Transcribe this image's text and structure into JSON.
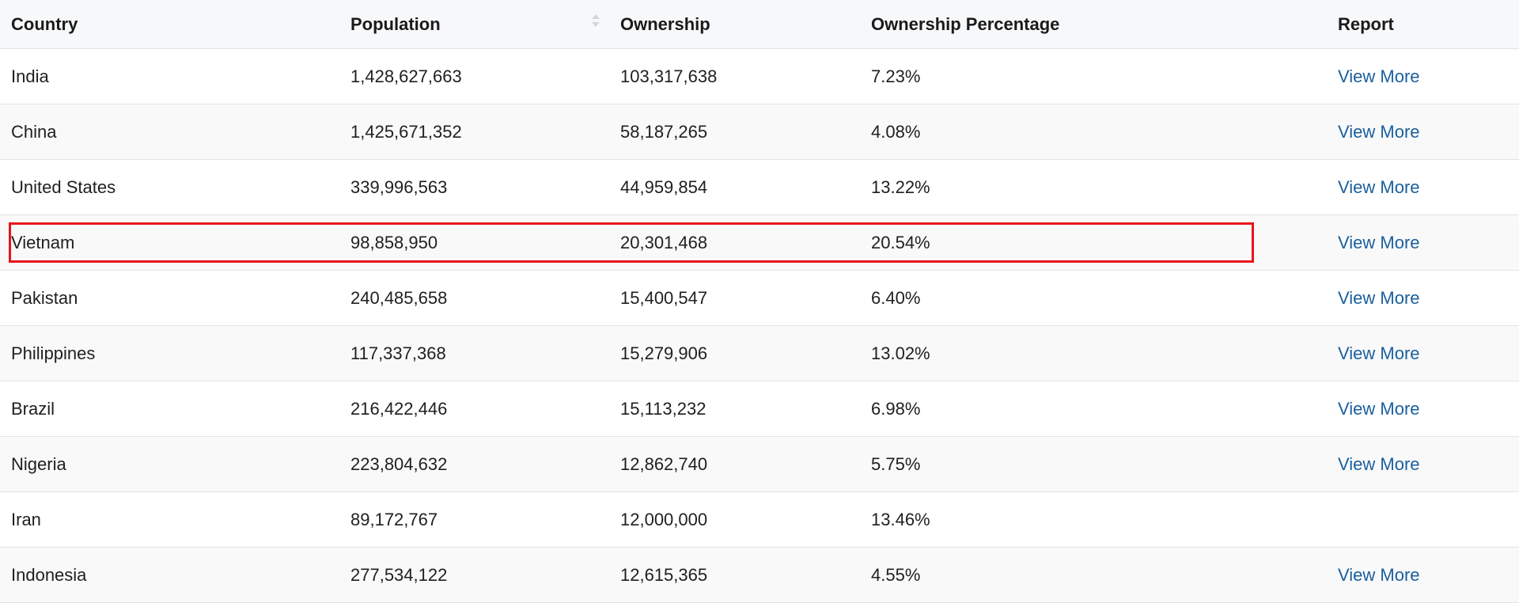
{
  "table": {
    "headers": {
      "country": "Country",
      "population": "Population",
      "ownership": "Ownership",
      "ownership_percentage": "Ownership Percentage",
      "report": "Report"
    },
    "rows": [
      {
        "country": "India",
        "population": "1,428,627,663",
        "ownership": "103,317,638",
        "percentage": "7.23%",
        "report": "View More"
      },
      {
        "country": "China",
        "population": "1,425,671,352",
        "ownership": "58,187,265",
        "percentage": "4.08%",
        "report": "View More"
      },
      {
        "country": "United States",
        "population": "339,996,563",
        "ownership": "44,959,854",
        "percentage": "13.22%",
        "report": "View More"
      },
      {
        "country": "Vietnam",
        "population": "98,858,950",
        "ownership": "20,301,468",
        "percentage": "20.54%",
        "report": "View More"
      },
      {
        "country": "Pakistan",
        "population": "240,485,658",
        "ownership": "15,400,547",
        "percentage": "6.40%",
        "report": "View More"
      },
      {
        "country": "Philippines",
        "population": "117,337,368",
        "ownership": "15,279,906",
        "percentage": "13.02%",
        "report": "View More"
      },
      {
        "country": "Brazil",
        "population": "216,422,446",
        "ownership": "15,113,232",
        "percentage": "6.98%",
        "report": "View More"
      },
      {
        "country": "Nigeria",
        "population": "223,804,632",
        "ownership": "12,862,740",
        "percentage": "5.75%",
        "report": "View More"
      },
      {
        "country": "Iran",
        "population": "89,172,767",
        "ownership": "12,000,000",
        "percentage": "13.46%",
        "report": ""
      },
      {
        "country": "Indonesia",
        "population": "277,534,122",
        "ownership": "12,615,365",
        "percentage": "4.55%",
        "report": "View More"
      }
    ]
  },
  "icons": {
    "population_sort": "sort-updown-icon"
  },
  "colors": {
    "link": "#1a5f9e",
    "highlight": "#e8141c",
    "header_bg": "#f7f8f9"
  }
}
